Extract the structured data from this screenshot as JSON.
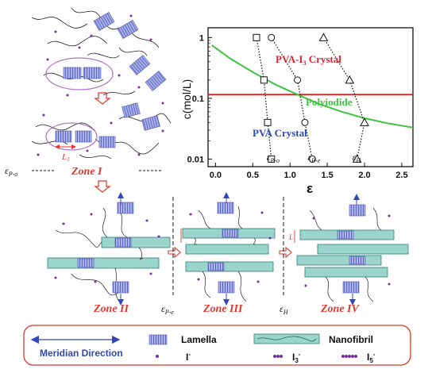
{
  "colors": {
    "chain": "#222222",
    "lamella_fill": "#aab0e8",
    "lamella_stroke": "#4a55b5",
    "fibril_fill": "#9ad4cc",
    "fibril_stroke": "#2f7d7a",
    "ion": "#7a2fa3",
    "arrow": "#e2372c",
    "zone_text": "#e2372c",
    "ellipse": "#b070c8",
    "legend_border": "#d83a30",
    "meridian": "#2f49b8",
    "pva_i3": "#d8262d",
    "polyiodide": "#3ec43e",
    "pva_crystal": "#2f49b8"
  },
  "left_panel": {
    "L1_label": "L",
    "L1_sub": "1",
    "eps_label": "ε",
    "eps_sub": "P-o",
    "zone": "Zone I"
  },
  "zones": {
    "z2": "Zone II",
    "z3": "Zone III",
    "z4": "Zone IV",
    "eps_pe": "ε",
    "eps_pe_sub": "P-e",
    "eps_h": "ε",
    "eps_h_sub": "H",
    "L_label": "L"
  },
  "chart_data": {
    "type": "scatter",
    "ylabel": "c(mol/L)",
    "xlabel": "ε",
    "yscale": "log",
    "xlim": [
      -0.1,
      2.65
    ],
    "ylim": [
      0.0075,
      1.45
    ],
    "xticks": [
      "0.0",
      "0.5",
      "1.0",
      "1.5",
      "2.0",
      "2.5"
    ],
    "yticks": [
      "1",
      "0.1",
      "0.01"
    ],
    "region_labels": {
      "pva_i3": "PVA-I",
      "pva_i3_sub": "3",
      "pva_i3_rest": " Crystal",
      "polyiodide": "Polyiodide",
      "pva_crystal": "PVA Crystal"
    },
    "boundary_pva_i3": {
      "c": 0.115
    },
    "series": [
      {
        "marker": "square",
        "label": "ε",
        "label_sub": "P-o",
        "x": [
          0.55,
          0.65,
          0.7,
          0.75
        ],
        "y": [
          1.0,
          0.2,
          0.04,
          0.01
        ]
      },
      {
        "marker": "circle",
        "label": "ε",
        "label_sub": "P-e",
        "x": [
          0.75,
          1.1,
          1.2,
          1.3
        ],
        "y": [
          1.0,
          0.2,
          0.04,
          0.01
        ]
      },
      {
        "marker": "triangle",
        "label": "ε",
        "label_sub": "H",
        "x": [
          1.45,
          1.8,
          2.0,
          1.9
        ],
        "y": [
          1.0,
          0.2,
          0.04,
          0.01
        ]
      }
    ],
    "polyiodide_curve": {
      "x": [
        -0.05,
        0.2,
        0.5,
        0.8,
        1.1,
        1.4,
        1.7,
        2.0,
        2.3,
        2.65
      ],
      "y": [
        0.75,
        0.45,
        0.27,
        0.17,
        0.115,
        0.08,
        0.06,
        0.047,
        0.039,
        0.033
      ]
    }
  },
  "legend": {
    "meridian": "Meridian Direction",
    "lamella": "Lamella",
    "nanofibril": "Nanofibril",
    "i1": "I",
    "i1_sup": "-",
    "i3": "I",
    "i3_sub": "3",
    "i3_sup": "-",
    "i5": "I",
    "i5_sub": "5",
    "i5_sup": "-"
  }
}
